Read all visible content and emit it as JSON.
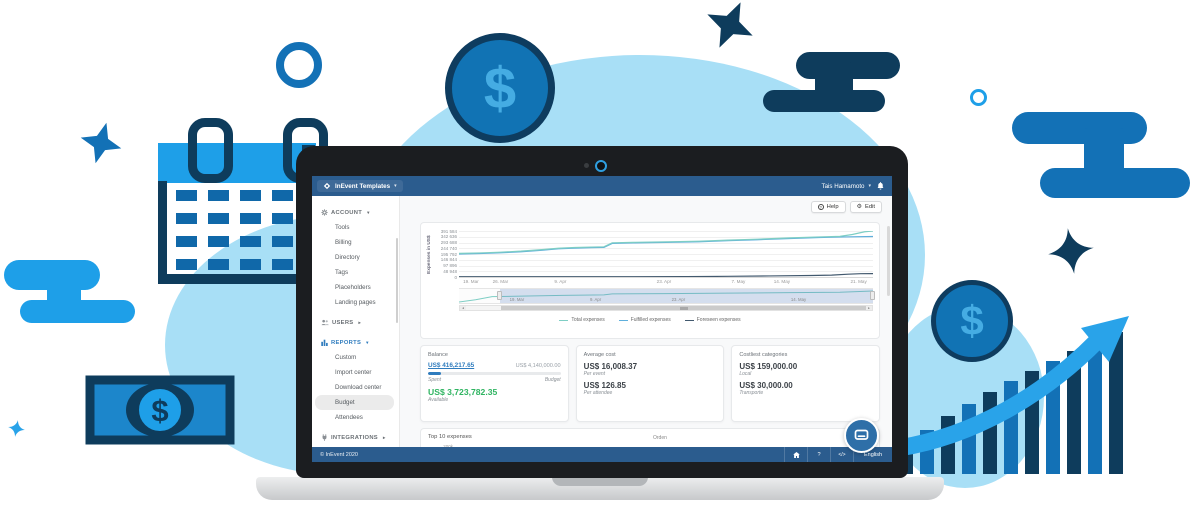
{
  "colors": {
    "brand_navy": "#2B5C8E",
    "link_blue": "#2F7CBE",
    "positive_green": "#2FB461",
    "illustration_bright_blue": "#1E9FE8",
    "illustration_medium_blue": "#1371B6",
    "illustration_dark_navy": "#0E3C5C",
    "illustration_light_blue": "#A8DFF6"
  },
  "app": {
    "topbar": {
      "brand": "InEvent Templates",
      "brand_chevron": "▾",
      "user": "Tais Hamamoto",
      "user_chevron": "▾",
      "bell_icon": "bell"
    },
    "actions": {
      "help_label": "Help",
      "help_icon": "?",
      "edit_label": "Edit",
      "edit_icon": "⚙"
    },
    "sidebar": {
      "sections": [
        {
          "label": "ACCOUNT",
          "icon": "gear-icon",
          "expanded": true,
          "items": [
            "Tools",
            "Billing",
            "Directory",
            "Tags",
            "Placeholders",
            "Landing pages"
          ]
        },
        {
          "label": "USERS",
          "icon": "users-icon",
          "expanded": false,
          "items": []
        },
        {
          "label": "REPORTS",
          "icon": "reports-icon",
          "expanded": true,
          "items": [
            "Custom",
            "Import center",
            "Download center",
            "Budget",
            "Attendees"
          ],
          "active_item": "Budget"
        },
        {
          "label": "INTEGRATIONS",
          "icon": "plug-icon",
          "expanded": false,
          "items": []
        }
      ]
    },
    "cards": {
      "balance": {
        "title": "Balance",
        "spent_value": "US$ 416,217.65",
        "budget_value": "US$ 4,140,000.00",
        "spent_label": "Spent",
        "budget_label": "Budget",
        "available_value": "US$ 3,723,782.35",
        "available_label": "Available",
        "progress_pct": 10
      },
      "average_cost": {
        "title": "Average cost",
        "value1": "US$ 16,008.37",
        "label1": "Per event",
        "value2": "US$ 126.85",
        "label2": "Per attendee"
      },
      "costliest": {
        "title": "Costliest categories",
        "value1": "US$ 159,000.00",
        "label1": "Local",
        "value2": "US$ 30,000.00",
        "label2": "Transporte"
      }
    },
    "top10": {
      "title": "Top 10 expenses",
      "visible_tick": "200k",
      "column_header": "Orden"
    },
    "footer": {
      "copyright": "© InEvent 2020",
      "home_icon": "house",
      "help_icon": "?",
      "code_icon": "</>",
      "language": "English"
    }
  },
  "chart_data": [
    {
      "type": "line",
      "title": "",
      "ylabel": "Expenses in US$",
      "ylim": [
        0,
        391584
      ],
      "ytick_labels": [
        "391 584",
        "342 636",
        "293 688",
        "244 740",
        "195 792",
        "146 844",
        "97 896",
        "48 948",
        "0"
      ],
      "xtick_labels": [
        {
          "label": "19. Mar",
          "pos": 0.01
        },
        {
          "label": "26. Mar",
          "pos": 0.1
        },
        {
          "label": "9. Apr",
          "pos": 0.245
        },
        {
          "label": "23. Apr",
          "pos": 0.495
        },
        {
          "label": "7. May",
          "pos": 0.675
        },
        {
          "label": "14. May",
          "pos": 0.78
        },
        {
          "label": "21. May",
          "pos": 0.985
        }
      ],
      "grid": true,
      "legend_position": "bottom",
      "series": [
        {
          "name": "Total expenses",
          "color": "#7ECEC4",
          "points": [
            [
              0,
              201000
            ],
            [
              0.05,
              205000
            ],
            [
              0.1,
              211000
            ],
            [
              0.15,
              220000
            ],
            [
              0.2,
              233000
            ],
            [
              0.24,
              245000
            ],
            [
              0.28,
              251000
            ],
            [
              0.32,
              255000
            ],
            [
              0.35,
              257000
            ],
            [
              0.37,
              291000
            ],
            [
              0.42,
              295000
            ],
            [
              0.5,
              299000
            ],
            [
              0.58,
              305000
            ],
            [
              0.65,
              314000
            ],
            [
              0.72,
              322000
            ],
            [
              0.8,
              333000
            ],
            [
              0.87,
              341000
            ],
            [
              0.92,
              346000
            ],
            [
              0.95,
              362000
            ],
            [
              0.98,
              385000
            ],
            [
              1,
              391000
            ]
          ]
        },
        {
          "name": "Fulfilled expenses",
          "color": "#5FAFDC",
          "points": [
            [
              0,
              196000
            ],
            [
              0.05,
              200000
            ],
            [
              0.1,
              206000
            ],
            [
              0.15,
              215000
            ],
            [
              0.2,
              228000
            ],
            [
              0.24,
              240000
            ],
            [
              0.28,
              246000
            ],
            [
              0.32,
              250000
            ],
            [
              0.35,
              252000
            ],
            [
              0.37,
              286000
            ],
            [
              0.42,
              290000
            ],
            [
              0.5,
              294000
            ],
            [
              0.58,
              300000
            ],
            [
              0.65,
              309000
            ],
            [
              0.72,
              317000
            ],
            [
              0.8,
              328000
            ],
            [
              0.87,
              336000
            ],
            [
              0.93,
              341000
            ],
            [
              1,
              345000
            ]
          ]
        },
        {
          "name": "Foreseen expenses",
          "color": "#42596E",
          "points": [
            [
              0,
              2000
            ],
            [
              0.55,
              3000
            ],
            [
              0.65,
              6000
            ],
            [
              0.75,
              9000
            ],
            [
              0.85,
              13000
            ],
            [
              0.9,
              16000
            ],
            [
              0.94,
              24000
            ],
            [
              0.97,
              28000
            ],
            [
              1,
              29000
            ]
          ]
        }
      ],
      "navigator": {
        "selection_start": 0.1,
        "selection_end": 1.0,
        "line_color": "#7ECEC4",
        "line_points": [
          [
            0,
            0
          ],
          [
            0.04,
            80000
          ],
          [
            0.08,
            190000
          ],
          [
            0.15,
            210000
          ],
          [
            0.25,
            235000
          ],
          [
            0.35,
            255000
          ],
          [
            0.37,
            291000
          ],
          [
            0.5,
            299000
          ],
          [
            0.65,
            314000
          ],
          [
            0.8,
            333000
          ],
          [
            0.92,
            346000
          ],
          [
            1,
            391000
          ]
        ],
        "labels": [
          {
            "label": "19. Mar",
            "pos": 0.14
          },
          {
            "label": "9. Apr",
            "pos": 0.33
          },
          {
            "label": "23. Apr",
            "pos": 0.53
          },
          {
            "label": "14. May",
            "pos": 0.82
          }
        ]
      }
    },
    {
      "type": "bar",
      "title": "Top 10 expenses",
      "visible_ticks": [
        "200k"
      ],
      "column_header": "Orden",
      "note": "chart clipped by screen edge"
    }
  ]
}
